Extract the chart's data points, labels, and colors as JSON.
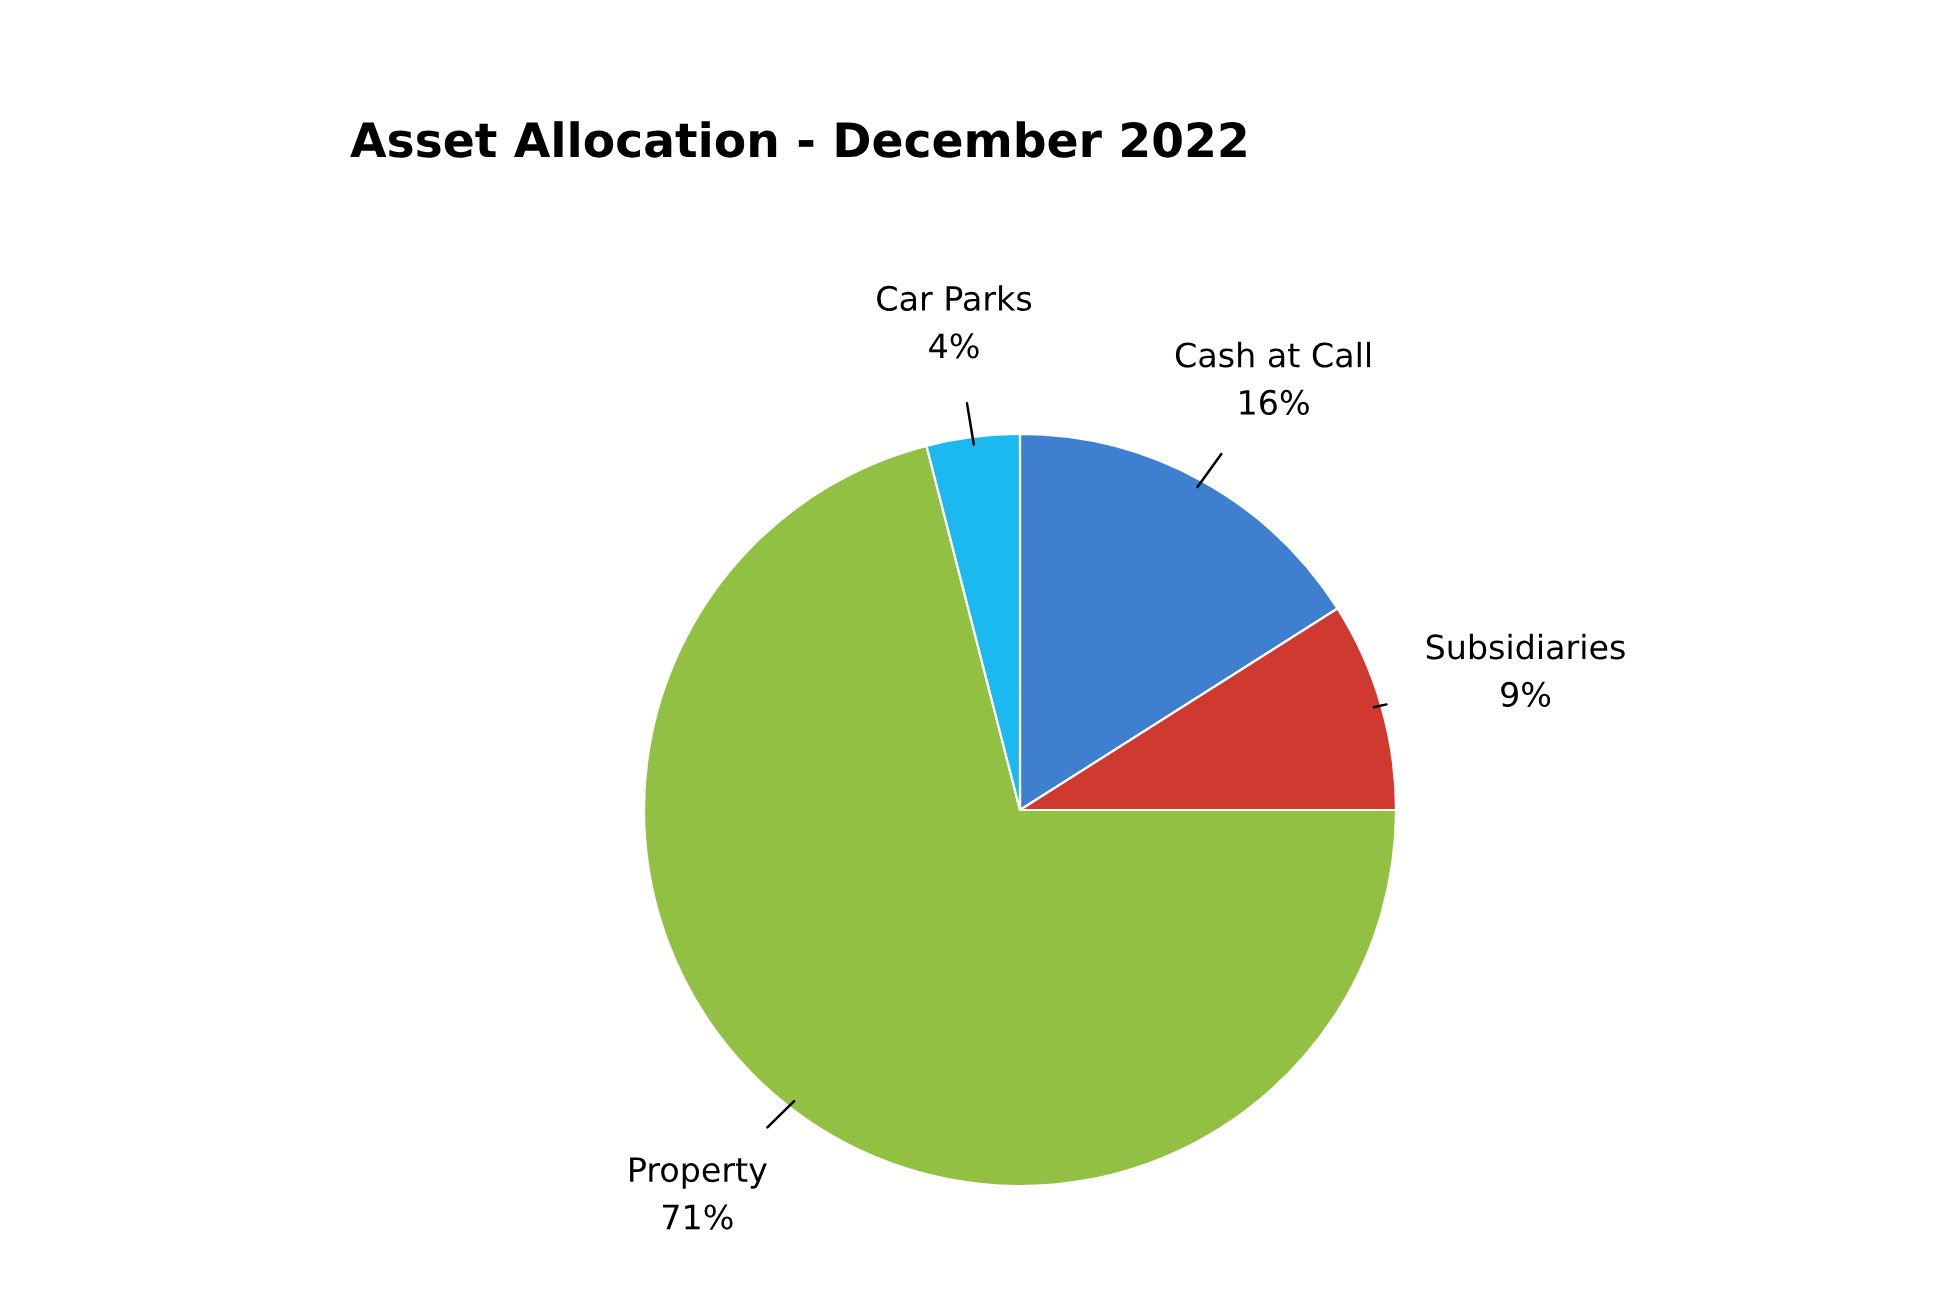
{
  "chart_data": {
    "type": "pie",
    "title": "Asset Allocation - December 2022",
    "categories": [
      "Cash at Call",
      "Subsidiaries",
      "Property",
      "Car Parks"
    ],
    "values": [
      16,
      9,
      71,
      4
    ],
    "value_labels": [
      "16%",
      "9%",
      "71%",
      "4%"
    ],
    "colors": [
      "#3f7fcf",
      "#d0392f",
      "#92c043",
      "#1cb9f0"
    ],
    "legend": false
  }
}
